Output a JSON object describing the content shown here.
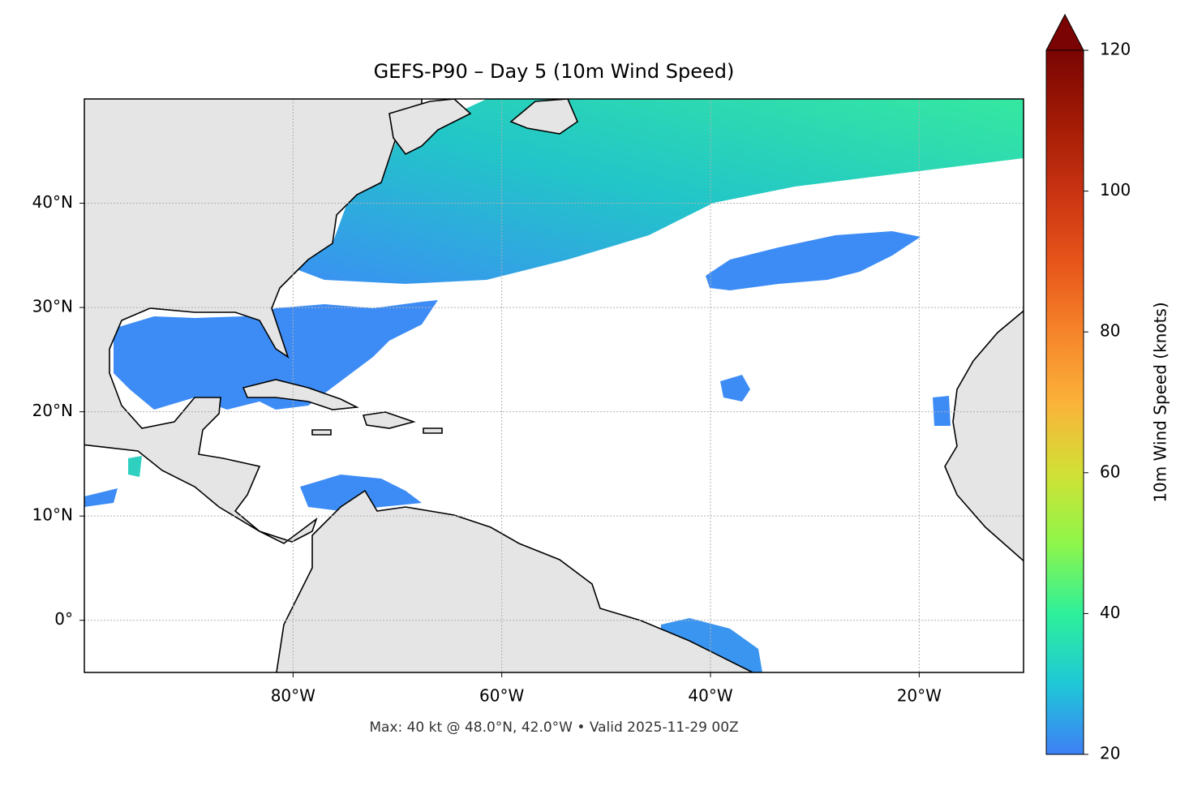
{
  "chart_data": {
    "type": "map",
    "title": "GEFS-P90 – Day 5 (10m Wind Speed)",
    "xlim": [
      -100,
      -10
    ],
    "ylim": [
      -5,
      50
    ],
    "xticks": [
      {
        "value": -80,
        "label": "80°W"
      },
      {
        "value": -60,
        "label": "60°W"
      },
      {
        "value": -40,
        "label": "40°W"
      },
      {
        "value": -20,
        "label": "20°W"
      }
    ],
    "yticks": [
      {
        "value": 0,
        "label": "0°"
      },
      {
        "value": 10,
        "label": "10°N"
      },
      {
        "value": 20,
        "label": "20°N"
      },
      {
        "value": 30,
        "label": "30°N"
      },
      {
        "value": 40,
        "label": "40°N"
      }
    ],
    "grid": true,
    "annotation": "Max: 40 kt @ 48.0°N, 42.0°W • Valid 2025-11-29 00Z",
    "colorbar": {
      "label": "10m Wind Speed (knots)",
      "lim": [
        20,
        120
      ],
      "ticks": [
        20,
        40,
        60,
        80,
        100,
        120
      ],
      "extend": "max",
      "colors": [
        "#3f7ff6",
        "#1fc8d7",
        "#2ef09a",
        "#8ff64a",
        "#d2e035",
        "#fbb23a",
        "#f6842a",
        "#e7541a",
        "#c93312",
        "#a11a05",
        "#7a0403"
      ]
    }
  }
}
